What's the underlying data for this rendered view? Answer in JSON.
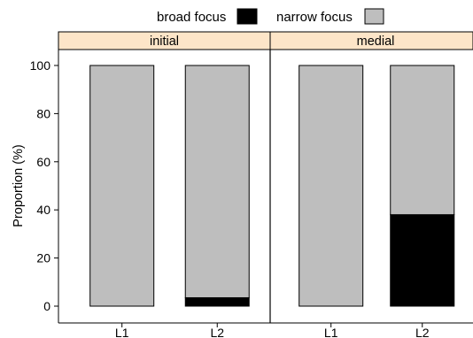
{
  "chart_data": {
    "type": "bar",
    "stacked": true,
    "legend_position": "top",
    "legend": [
      {
        "label": "broad focus",
        "color": "#000000"
      },
      {
        "label": "narrow focus",
        "color": "#bebebe"
      }
    ],
    "ylabel": "Proportion (%)",
    "xlabel": "",
    "ylim": [
      -7,
      113
    ],
    "yticks": [
      0,
      20,
      40,
      60,
      80,
      100
    ],
    "grid": false,
    "panel_fill": "#fde5c8",
    "categories": [
      "L1",
      "L2"
    ],
    "panels": [
      {
        "label": "initial",
        "series": [
          {
            "name": "broad focus",
            "values": [
              0,
              3.5
            ]
          },
          {
            "name": "narrow focus",
            "values": [
              100,
              96.5
            ]
          }
        ]
      },
      {
        "label": "medial",
        "series": [
          {
            "name": "broad focus",
            "values": [
              0,
              38
            ]
          },
          {
            "name": "narrow focus",
            "values": [
              100,
              62
            ]
          }
        ]
      }
    ]
  }
}
